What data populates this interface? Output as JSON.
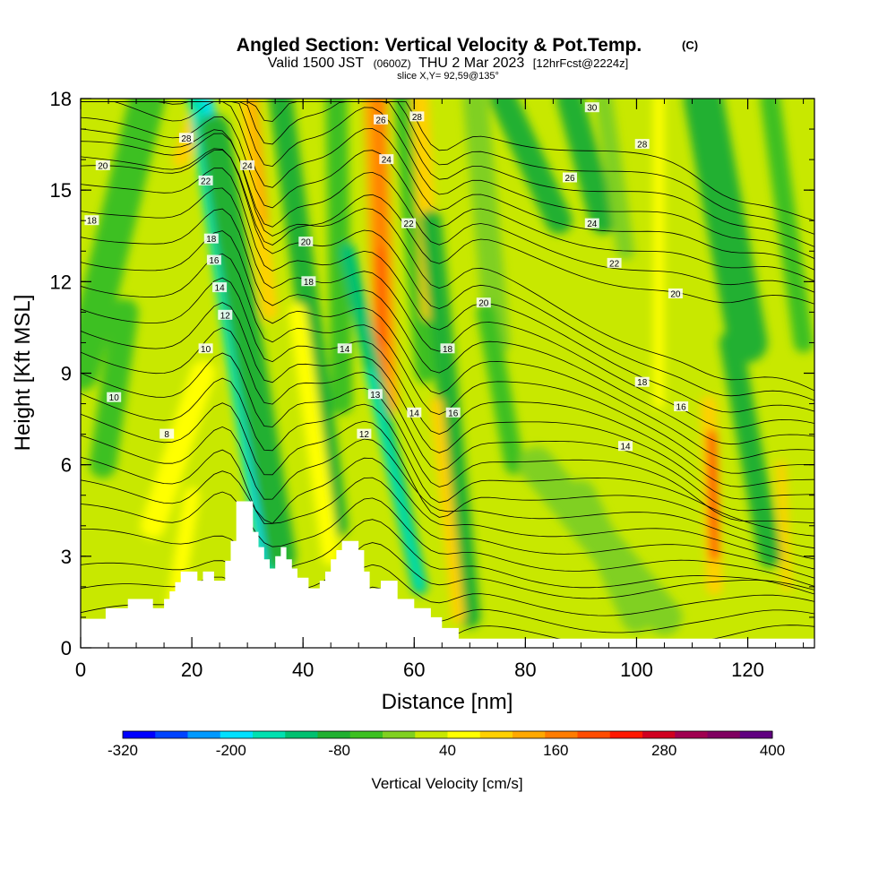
{
  "chart_data": {
    "type": "heatmap",
    "title": "Angled Section: Vertical Velocity & Pot.Temp.",
    "title_unit": "(C)",
    "subtitle_parts": [
      "Valid 1500 JST",
      "(0600Z)",
      "THU 2 Mar 2023",
      "[12hrFcst@2224z]"
    ],
    "slice_label": "slice X,Y= 92,59@135°",
    "xlabel": "Distance [nm]",
    "ylabel": "Height [Kft MSL]",
    "xlim": [
      0,
      132
    ],
    "ylim": [
      0,
      18
    ],
    "x_ticks": [
      0,
      20,
      40,
      60,
      80,
      100,
      120
    ],
    "y_ticks": [
      0,
      3,
      6,
      9,
      12,
      15,
      18
    ],
    "colorbar": {
      "label": "Vertical Velocity [cm/s]",
      "range": [
        -320,
        400
      ],
      "tick_values": [
        -320,
        -200,
        -80,
        40,
        160,
        280,
        400
      ],
      "tick_labels": [
        "-320",
        "-200",
        "-80",
        "40",
        "160",
        "280",
        "400"
      ],
      "colors": [
        "#0000ff",
        "#0044ff",
        "#0099ff",
        "#00e0ff",
        "#00e0b0",
        "#00c070",
        "#20b030",
        "#3cc020",
        "#80d020",
        "#c8e800",
        "#ffff00",
        "#ffd000",
        "#ffa800",
        "#ff7c00",
        "#ff4c00",
        "#ff1800",
        "#d00020",
        "#a00050",
        "#800060",
        "#600080"
      ]
    },
    "terrain_kft": [
      [
        0,
        0.95
      ],
      [
        4.5,
        0.95
      ],
      [
        4.5,
        1.3
      ],
      [
        8.5,
        1.3
      ],
      [
        8.5,
        1.6
      ],
      [
        13,
        1.6
      ],
      [
        13,
        1.3
      ],
      [
        15,
        1.3
      ],
      [
        15,
        1.6
      ],
      [
        16,
        1.6
      ],
      [
        16,
        1.85
      ],
      [
        17,
        1.85
      ],
      [
        17,
        2.15
      ],
      [
        18,
        2.15
      ],
      [
        18,
        2.5
      ],
      [
        21,
        2.5
      ],
      [
        21,
        2.2
      ],
      [
        22,
        2.2
      ],
      [
        22,
        2.5
      ],
      [
        24,
        2.5
      ],
      [
        24,
        2.2
      ],
      [
        26,
        2.2
      ],
      [
        26,
        2.85
      ],
      [
        27,
        2.85
      ],
      [
        27,
        3.5
      ],
      [
        28,
        3.5
      ],
      [
        28,
        4.8
      ],
      [
        31,
        4.8
      ],
      [
        31,
        3.8
      ],
      [
        32,
        3.8
      ],
      [
        32,
        3.3
      ],
      [
        33,
        3.3
      ],
      [
        33,
        2.9
      ],
      [
        34,
        2.9
      ],
      [
        34,
        2.6
      ],
      [
        35,
        2.6
      ],
      [
        35,
        3.0
      ],
      [
        36,
        3.0
      ],
      [
        36,
        3.3
      ],
      [
        37,
        3.3
      ],
      [
        37,
        2.9
      ],
      [
        38,
        2.9
      ],
      [
        38,
        2.6
      ],
      [
        39,
        2.6
      ],
      [
        39,
        2.3
      ],
      [
        41,
        2.3
      ],
      [
        41,
        1.95
      ],
      [
        43,
        1.95
      ],
      [
        43,
        2.2
      ],
      [
        44,
        2.2
      ],
      [
        44,
        2.5
      ],
      [
        45,
        2.5
      ],
      [
        45,
        2.9
      ],
      [
        46,
        2.9
      ],
      [
        46,
        3.2
      ],
      [
        47,
        3.2
      ],
      [
        47,
        3.5
      ],
      [
        50,
        3.5
      ],
      [
        50,
        3.2
      ],
      [
        51,
        3.2
      ],
      [
        51,
        2.5
      ],
      [
        52,
        2.5
      ],
      [
        52,
        1.95
      ],
      [
        54,
        1.95
      ],
      [
        54,
        2.2
      ],
      [
        57,
        2.2
      ],
      [
        57,
        1.6
      ],
      [
        60,
        1.6
      ],
      [
        60,
        1.3
      ],
      [
        63,
        1.3
      ],
      [
        63,
        1.0
      ],
      [
        65,
        1.0
      ],
      [
        65,
        0.65
      ],
      [
        68,
        0.65
      ],
      [
        68,
        0.3
      ],
      [
        132,
        0.3
      ]
    ],
    "contour_labels": [
      {
        "x": 4,
        "y": 15.8,
        "text": "20"
      },
      {
        "x": 2,
        "y": 14.0,
        "text": "18"
      },
      {
        "x": 19,
        "y": 16.7,
        "text": "28"
      },
      {
        "x": 22.5,
        "y": 15.3,
        "text": "22"
      },
      {
        "x": 23.5,
        "y": 13.4,
        "text": "18"
      },
      {
        "x": 24,
        "y": 12.7,
        "text": "16"
      },
      {
        "x": 25,
        "y": 11.8,
        "text": "14"
      },
      {
        "x": 26,
        "y": 10.9,
        "text": "12"
      },
      {
        "x": 22.5,
        "y": 9.8,
        "text": "10"
      },
      {
        "x": 6,
        "y": 8.2,
        "text": "10"
      },
      {
        "x": 15.5,
        "y": 7.0,
        "text": "8"
      },
      {
        "x": 30,
        "y": 15.8,
        "text": "24"
      },
      {
        "x": 40.5,
        "y": 13.3,
        "text": "20"
      },
      {
        "x": 41,
        "y": 12.0,
        "text": "18"
      },
      {
        "x": 47.5,
        "y": 9.8,
        "text": "14"
      },
      {
        "x": 53,
        "y": 8.3,
        "text": "13"
      },
      {
        "x": 51,
        "y": 7.0,
        "text": "12"
      },
      {
        "x": 54,
        "y": 17.3,
        "text": "26"
      },
      {
        "x": 60.5,
        "y": 17.4,
        "text": "28"
      },
      {
        "x": 55,
        "y": 16.0,
        "text": "24"
      },
      {
        "x": 59,
        "y": 13.9,
        "text": "22"
      },
      {
        "x": 60,
        "y": 7.7,
        "text": "14"
      },
      {
        "x": 72.5,
        "y": 11.3,
        "text": "20"
      },
      {
        "x": 66,
        "y": 9.8,
        "text": "18"
      },
      {
        "x": 67,
        "y": 7.7,
        "text": "16"
      },
      {
        "x": 92,
        "y": 17.7,
        "text": "30"
      },
      {
        "x": 101,
        "y": 16.5,
        "text": "28"
      },
      {
        "x": 88,
        "y": 15.4,
        "text": "26"
      },
      {
        "x": 92,
        "y": 13.9,
        "text": "24"
      },
      {
        "x": 96,
        "y": 12.6,
        "text": "22"
      },
      {
        "x": 107,
        "y": 11.6,
        "text": "20"
      },
      {
        "x": 101,
        "y": 8.7,
        "text": "18"
      },
      {
        "x": 108,
        "y": 7.9,
        "text": "16"
      },
      {
        "x": 98,
        "y": 6.6,
        "text": "14"
      }
    ]
  }
}
